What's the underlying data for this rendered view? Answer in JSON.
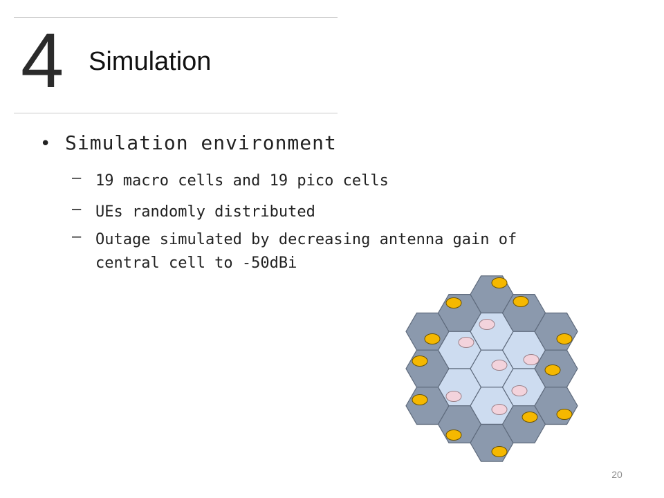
{
  "header": {
    "section_number": "4",
    "title": "Simulation"
  },
  "content": {
    "bullet": "Simulation environment",
    "sub_items": [
      "19 macro cells and 19 pico cells",
      "UEs randomly distributed",
      "Outage simulated by decreasing antenna gain of\ncentral cell to -50dBi"
    ]
  },
  "figure": {
    "outer_cell_color": "#8b99ad",
    "inner_cell_color": "#cddcf0",
    "cell_border_color": "#5e6a7c",
    "macro_ue_color": "#f5b800",
    "pico_ue_color": "#f3d3dc"
  },
  "footer": {
    "page_number": "20"
  }
}
